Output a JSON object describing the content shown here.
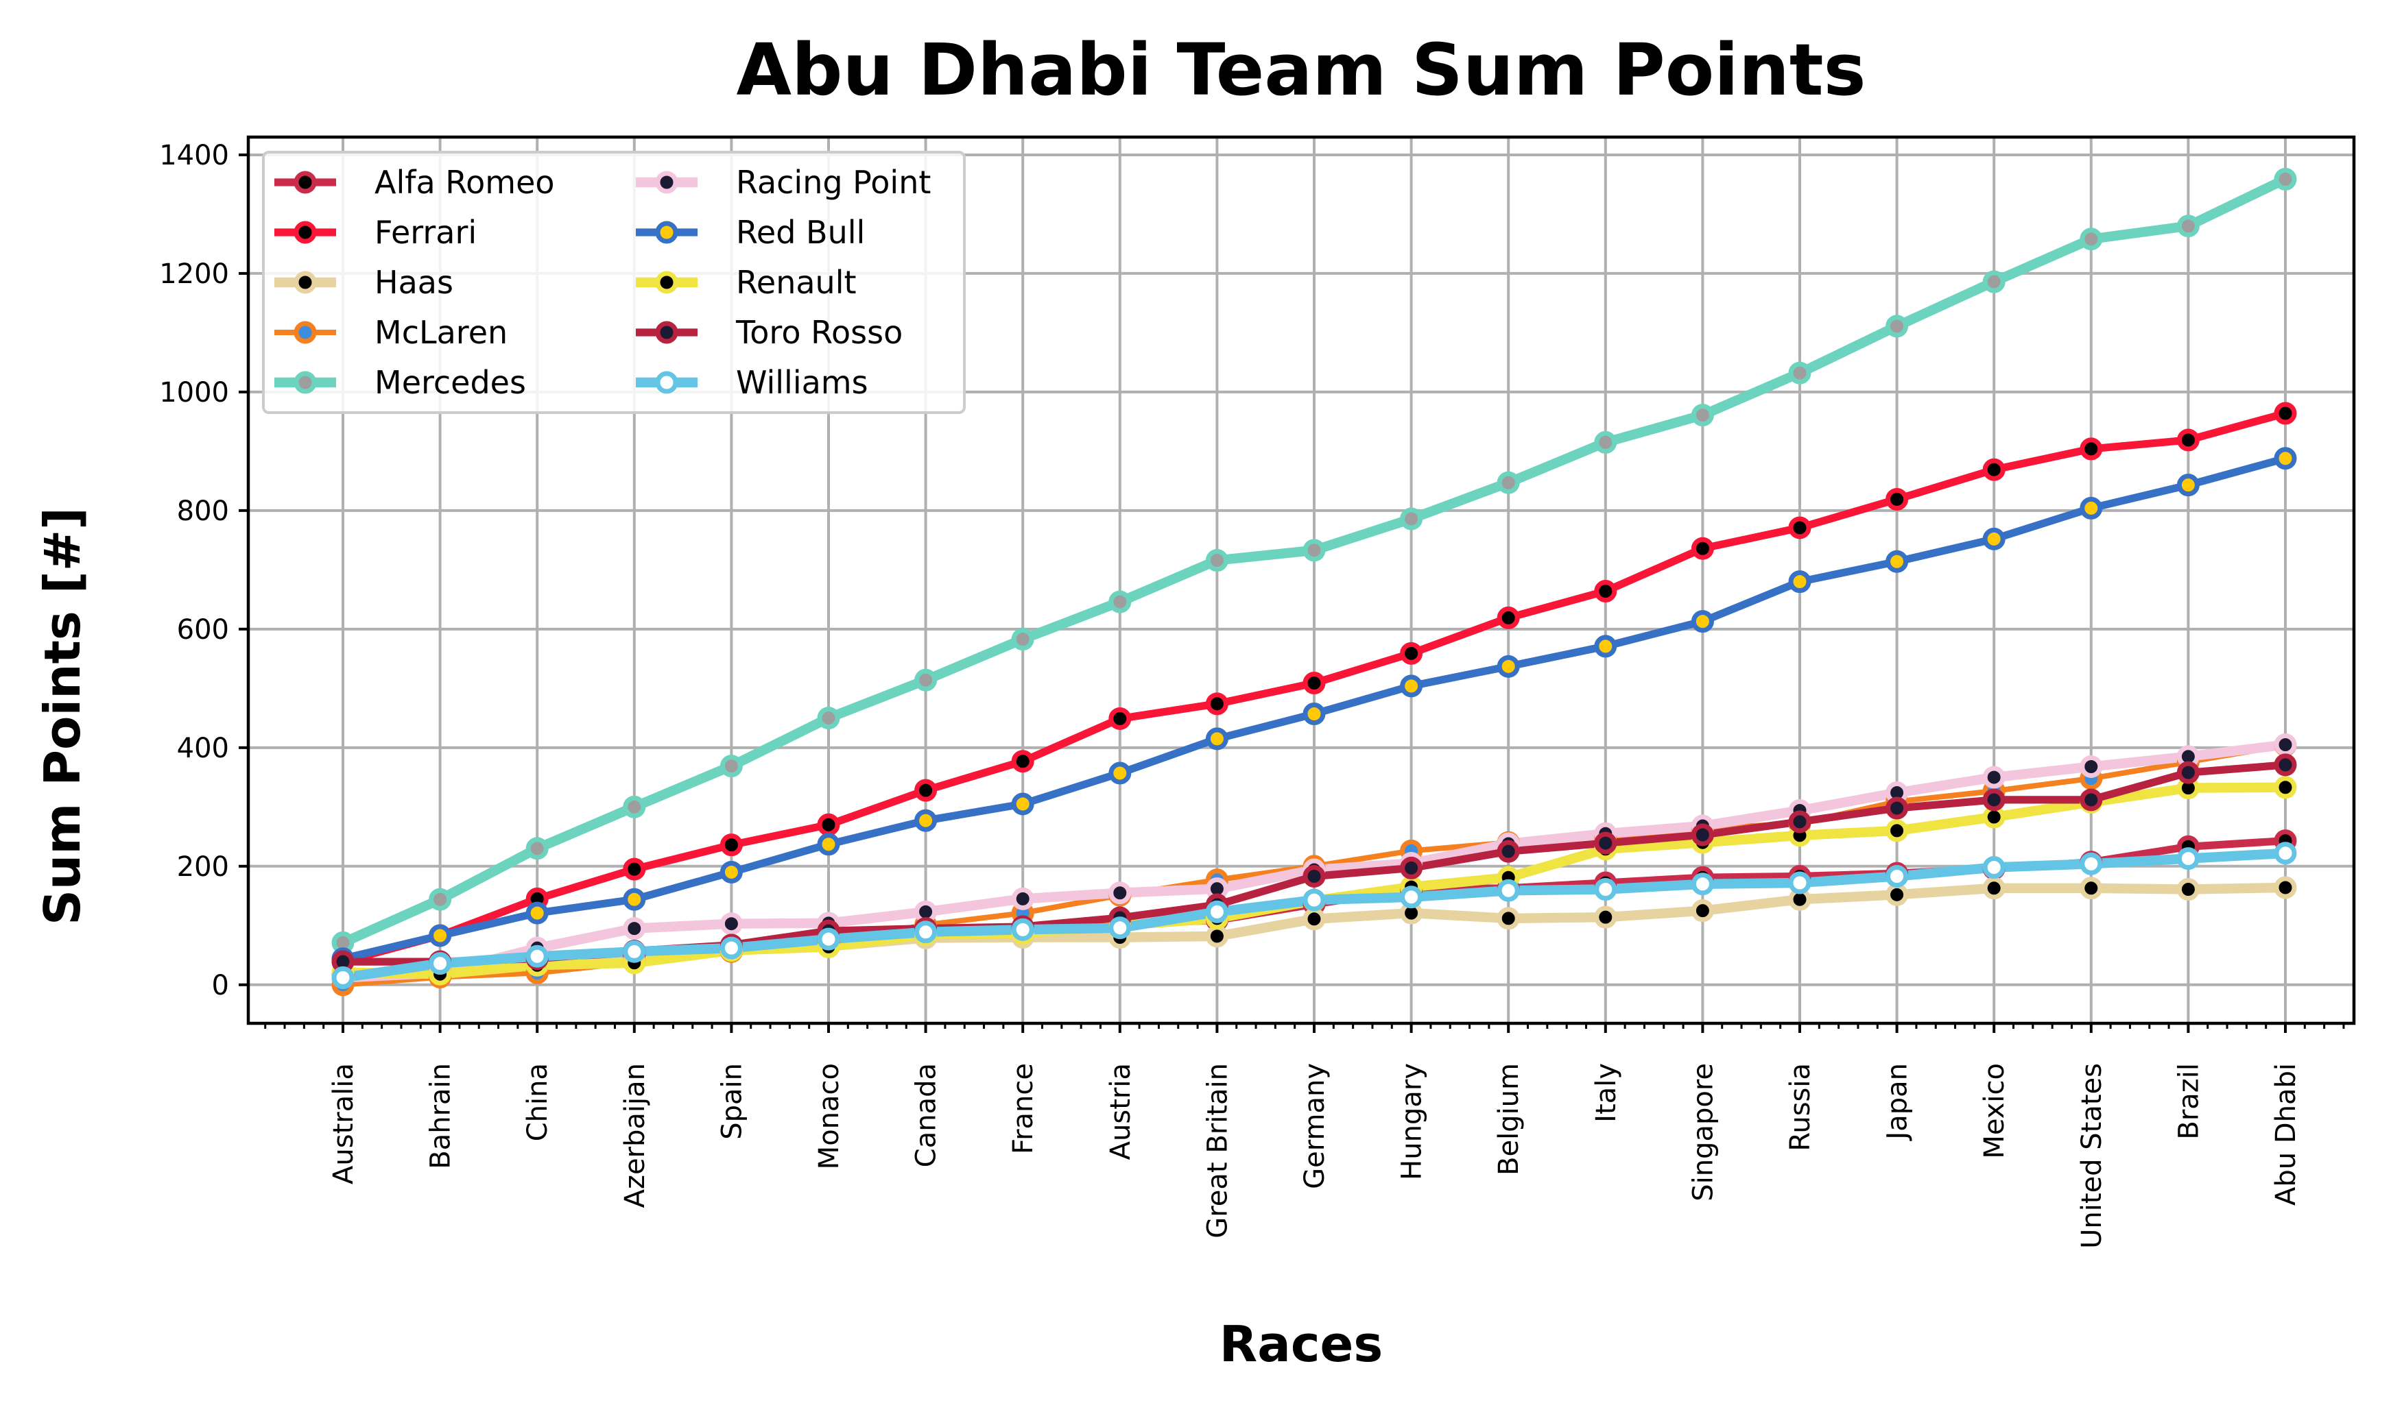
{
  "chart_data": {
    "type": "line",
    "title": "Abu Dhabi Team Sum Points",
    "xlabel": "Races",
    "ylabel": "Sum Points [#]",
    "ylim": [
      -65,
      1430
    ],
    "yticks": [
      0,
      200,
      400,
      600,
      800,
      1000,
      1200,
      1400
    ],
    "grid": true,
    "legend_position": "upper-left",
    "legend_columns": 2,
    "categories": [
      "Australia",
      "Bahrain",
      "China",
      "Azerbaijan",
      "Spain",
      "Monaco",
      "Canada",
      "France",
      "Austria",
      "Great Britain",
      "Germany",
      "Hungary",
      "Belgium",
      "Italy",
      "Singapore",
      "Russia",
      "Japan",
      "Mexico",
      "United States",
      "Brazil",
      "Abu Dhabi"
    ],
    "series": [
      {
        "name": "Alfa Romeo",
        "color": "#C92D4B",
        "marker_face": "#000000",
        "marker_edge": "#C92D4B",
        "line_width": 7,
        "values": [
          18,
          22,
          44,
          50,
          64,
          76,
          80,
          96,
          102,
          109,
          136,
          161,
          163,
          172,
          181,
          183,
          188,
          196,
          207,
          233,
          243
        ]
      },
      {
        "name": "Ferrari",
        "color": "#F91536",
        "marker_face": "#000000",
        "marker_edge": "#F91536",
        "line_width": 7,
        "values": [
          39,
          83,
          145,
          195,
          236,
          270,
          328,
          377,
          449,
          474,
          509,
          559,
          619,
          664,
          736,
          771,
          819,
          869,
          904,
          919,
          964
        ]
      },
      {
        "name": "Haas",
        "color": "#E6D3A0",
        "marker_face": "#000000",
        "marker_edge": "#E6D3A0",
        "line_width": 9,
        "values": [
          10,
          21,
          29,
          40,
          59,
          65,
          79,
          80,
          80,
          82,
          111,
          121,
          112,
          114,
          125,
          144,
          152,
          163,
          163,
          161,
          164
        ]
      },
      {
        "name": "McLaren",
        "color": "#F58020",
        "marker_face": "#3C8DDB",
        "marker_edge": "#F58020",
        "line_width": 5,
        "values": [
          0,
          13,
          20,
          38,
          56,
          72,
          101,
          121,
          151,
          177,
          200,
          226,
          240,
          250,
          264,
          272,
          309,
          327,
          348,
          376,
          404
        ]
      },
      {
        "name": "Mercedes",
        "color": "#6CD3BF",
        "marker_face": "#9E9E9E",
        "marker_edge": "#6CD3BF",
        "line_width": 9,
        "values": [
          71,
          144,
          230,
          300,
          369,
          450,
          514,
          583,
          646,
          716,
          733,
          786,
          847,
          915,
          961,
          1032,
          1111,
          1186,
          1258,
          1280,
          1359
        ]
      },
      {
        "name": "Racing Point",
        "color": "#F3C6DE",
        "marker_face": "#1B1A33",
        "marker_edge": "#F3C6DE",
        "line_width": 9,
        "values": [
          12,
          20,
          62,
          95,
          103,
          104,
          123,
          145,
          155,
          162,
          194,
          205,
          238,
          255,
          268,
          294,
          324,
          350,
          368,
          385,
          405
        ]
      },
      {
        "name": "Red Bull",
        "color": "#3671C6",
        "marker_face": "#FFC906",
        "marker_edge": "#3671C6",
        "line_width": 7,
        "values": [
          44,
          83,
          121,
          144,
          190,
          237,
          277,
          305,
          357,
          415,
          457,
          504,
          537,
          571,
          613,
          680,
          714,
          752,
          804,
          843,
          888
        ]
      },
      {
        "name": "Renault",
        "color": "#F0E442",
        "marker_face": "#000000",
        "marker_edge": "#F0E442",
        "line_width": 9,
        "values": [
          21,
          18,
          33,
          37,
          58,
          64,
          85,
          87,
          100,
          112,
          142,
          165,
          181,
          229,
          240,
          252,
          260,
          283,
          308,
          332,
          333
        ]
      },
      {
        "name": "Toro Rosso",
        "color": "#B6223F",
        "marker_face": "#1B1A33",
        "marker_edge": "#B6223F",
        "line_width": 7,
        "values": [
          39,
          39,
          44,
          57,
          67,
          91,
          95,
          98,
          113,
          135,
          183,
          197,
          225,
          239,
          253,
          275,
          298,
          312,
          312,
          358,
          371
        ]
      },
      {
        "name": "Williams",
        "color": "#64C4E5",
        "marker_face": "#FFFFFF",
        "marker_edge": "#64C4E5",
        "line_width": 9,
        "values": [
          12,
          36,
          48,
          56,
          62,
          77,
          89,
          93,
          96,
          123,
          143,
          148,
          159,
          161,
          170,
          172,
          183,
          198,
          204,
          213,
          222
        ]
      }
    ]
  }
}
